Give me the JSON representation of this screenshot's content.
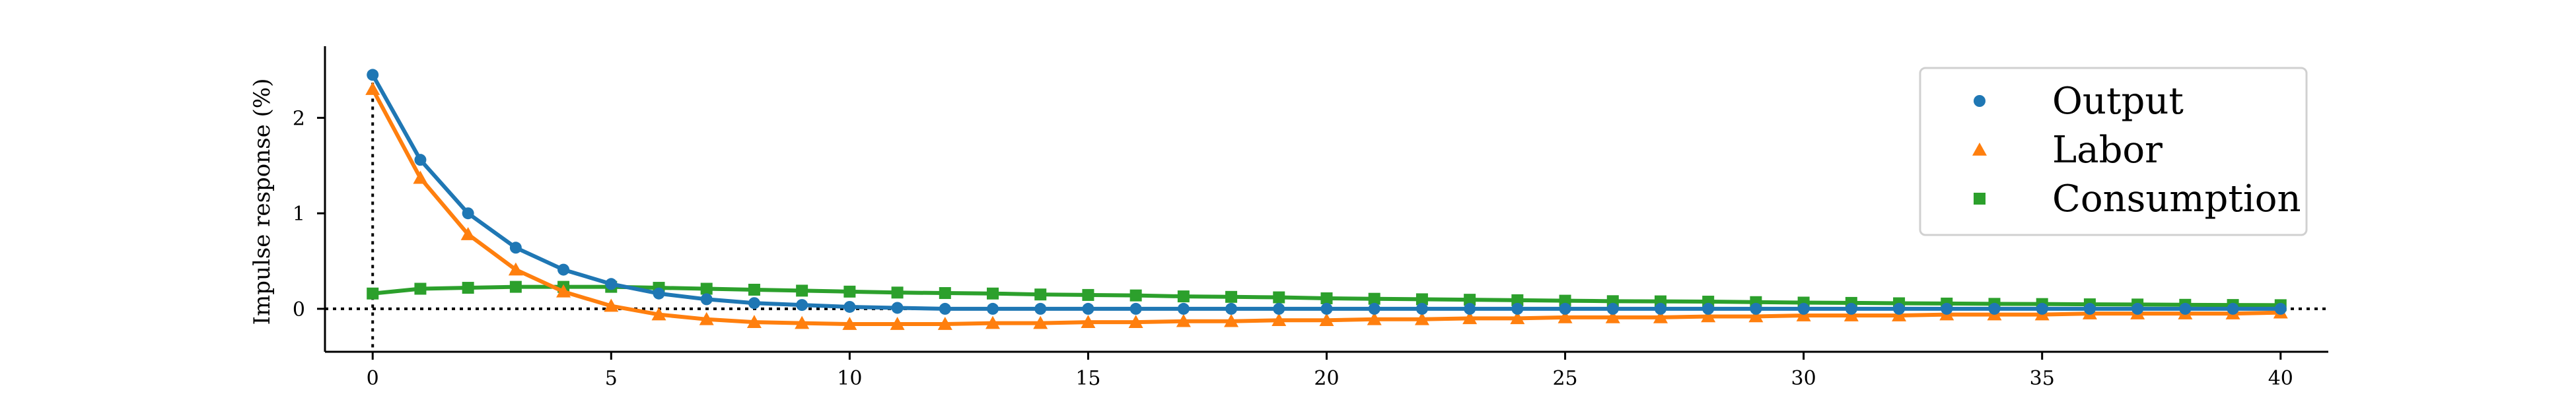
{
  "chart_data": {
    "type": "line",
    "title": "",
    "xlabel": "",
    "ylabel": "Impulse response (%)",
    "xlim": [
      -1,
      41
    ],
    "ylim": [
      -0.45,
      2.75
    ],
    "x_ticks": [
      0,
      5,
      10,
      15,
      20,
      25,
      30,
      35,
      40
    ],
    "y_ticks": [
      0,
      1,
      2
    ],
    "grid": false,
    "legend_position": "top-right",
    "reference_lines": [
      {
        "orientation": "horizontal",
        "value": 0,
        "style": "dotted"
      },
      {
        "orientation": "vertical",
        "value": 0,
        "style": "dotted"
      }
    ],
    "x": [
      0,
      1,
      2,
      3,
      4,
      5,
      6,
      7,
      8,
      9,
      10,
      11,
      12,
      13,
      14,
      15,
      16,
      17,
      18,
      19,
      20,
      21,
      22,
      23,
      24,
      25,
      26,
      27,
      28,
      29,
      30,
      31,
      32,
      33,
      34,
      35,
      36,
      37,
      38,
      39,
      40
    ],
    "series": [
      {
        "name": "Output",
        "color": "#1f77b4",
        "marker": "circle",
        "values": [
          2.45,
          1.56,
          1.0,
          0.64,
          0.41,
          0.26,
          0.16,
          0.1,
          0.06,
          0.04,
          0.02,
          0.01,
          0.0,
          0.0,
          0.0,
          0.0,
          0.0,
          0.0,
          0.0,
          0.0,
          0.0,
          0.0,
          0.0,
          0.0,
          0.0,
          0.0,
          0.0,
          0.0,
          0.0,
          0.0,
          0.0,
          0.0,
          0.0,
          0.0,
          0.0,
          0.0,
          0.0,
          0.0,
          0.0,
          0.0,
          0.0
        ]
      },
      {
        "name": "Labor",
        "color": "#ff7f0e",
        "marker": "triangle",
        "values": [
          2.3,
          1.37,
          0.78,
          0.41,
          0.18,
          0.03,
          -0.06,
          -0.11,
          -0.14,
          -0.15,
          -0.16,
          -0.16,
          -0.16,
          -0.15,
          -0.15,
          -0.14,
          -0.14,
          -0.13,
          -0.13,
          -0.12,
          -0.12,
          -0.11,
          -0.11,
          -0.1,
          -0.1,
          -0.09,
          -0.09,
          -0.09,
          -0.08,
          -0.08,
          -0.07,
          -0.07,
          -0.07,
          -0.06,
          -0.06,
          -0.06,
          -0.05,
          -0.05,
          -0.05,
          -0.05,
          -0.04
        ]
      },
      {
        "name": "Consumption",
        "color": "#2ca02c",
        "marker": "square",
        "values": [
          0.16,
          0.21,
          0.22,
          0.23,
          0.23,
          0.23,
          0.22,
          0.21,
          0.2,
          0.19,
          0.18,
          0.17,
          0.165,
          0.16,
          0.15,
          0.145,
          0.14,
          0.13,
          0.125,
          0.12,
          0.11,
          0.105,
          0.1,
          0.095,
          0.09,
          0.085,
          0.08,
          0.078,
          0.075,
          0.07,
          0.065,
          0.062,
          0.058,
          0.055,
          0.052,
          0.05,
          0.047,
          0.045,
          0.042,
          0.04,
          0.038
        ]
      }
    ]
  }
}
